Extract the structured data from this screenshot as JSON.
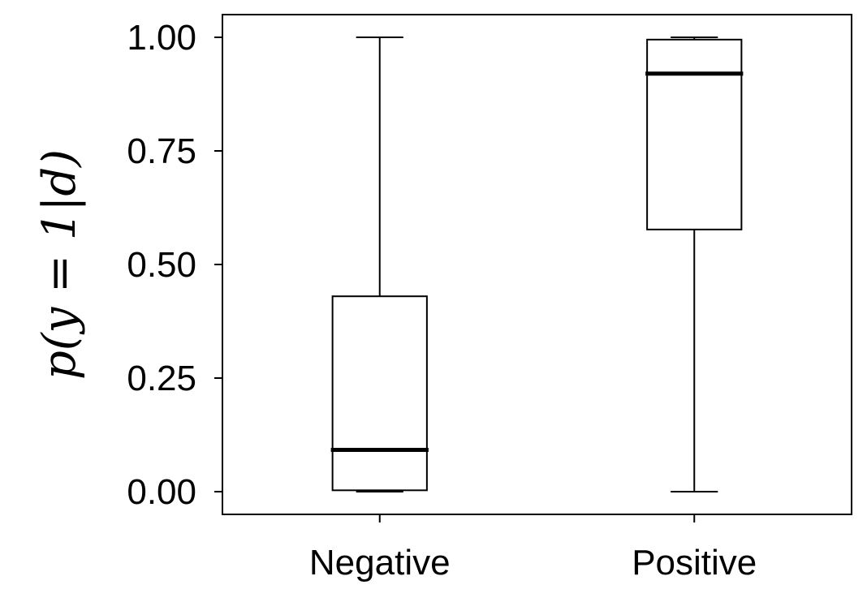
{
  "chart_data": {
    "type": "box",
    "title": "",
    "xlabel": "",
    "ylabel": "p(y = 1|d)",
    "categories": [
      "Negative",
      "Positive"
    ],
    "boxes": [
      {
        "name": "Negative",
        "whisker_low": 0.0,
        "q1": 0.003,
        "median": 0.092,
        "q3": 0.43,
        "whisker_high": 1.0
      },
      {
        "name": "Positive",
        "whisker_low": 0.0,
        "q1": 0.577,
        "median": 0.92,
        "q3": 0.995,
        "whisker_high": 1.0
      }
    ],
    "ylim": [
      -0.05,
      1.05
    ],
    "yticks": [
      "0.00",
      "0.25",
      "0.50",
      "0.75",
      "1.00"
    ],
    "grid": false,
    "legend": "none",
    "colors": {
      "box_stroke": "#000000",
      "box_fill": "#ffffff"
    }
  }
}
